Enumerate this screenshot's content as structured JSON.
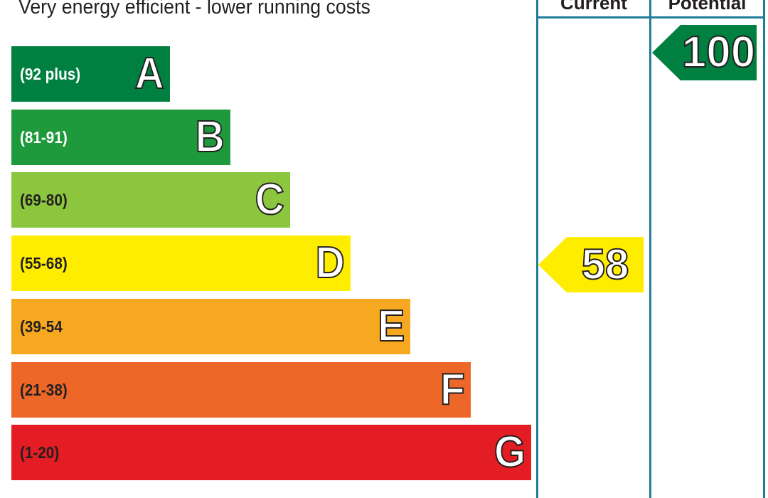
{
  "header": {
    "top_note": "Very energy efficient - lower running costs",
    "current_label": "Current",
    "potential_label": "Potential"
  },
  "chart_data": {
    "type": "bar",
    "categories": [
      "A",
      "B",
      "C",
      "D",
      "E",
      "F",
      "G"
    ],
    "ranges": [
      "(92 plus)",
      "(81-91)",
      "(69-80)",
      "(55-68)",
      "(39-54",
      "(21-38)",
      "(1-20)"
    ],
    "colors": [
      "#008040",
      "#1e9a3c",
      "#8cc63f",
      "#ffed00",
      "#f6a821",
      "#ec6728",
      "#e31d23"
    ],
    "current": {
      "value": 58,
      "band": "D",
      "color": "#ffed00"
    },
    "potential": {
      "value": 100,
      "band": "A",
      "color": "#008040"
    }
  }
}
